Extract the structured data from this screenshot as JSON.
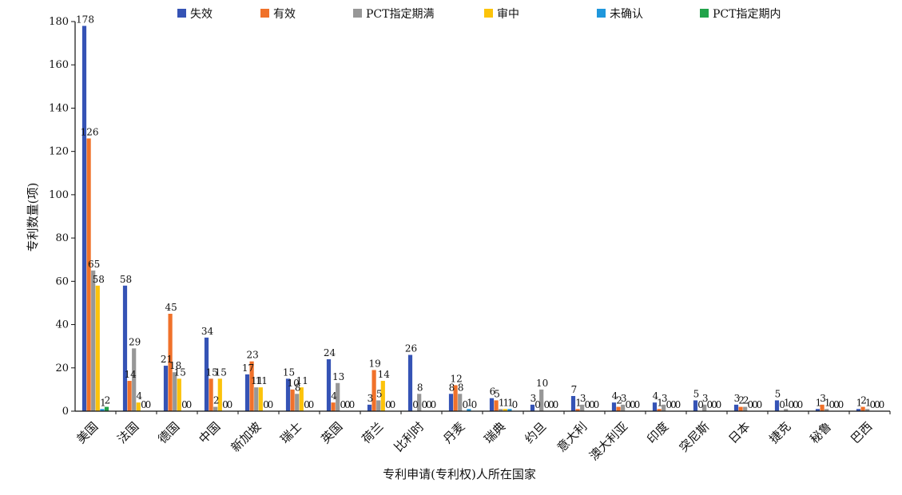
{
  "chart_data": {
    "type": "bar",
    "title": "",
    "xlabel": "专利申请(专利权)人所在国家",
    "ylabel": "专利数量(项)",
    "ylim": [
      0,
      180
    ],
    "yticks": [
      0,
      20,
      40,
      60,
      80,
      100,
      120,
      140,
      160,
      180
    ],
    "legend_position": "top",
    "grid": false,
    "categories": [
      "美国",
      "法国",
      "德国",
      "中国",
      "新加坡",
      "瑞士",
      "英国",
      "荷兰",
      "比利时",
      "丹麦",
      "瑞典",
      "约旦",
      "意大利",
      "澳大利亚",
      "印度",
      "突尼斯",
      "日本",
      "捷克",
      "秘鲁",
      "巴西"
    ],
    "series": [
      {
        "name": "失效",
        "color": "#3553b5",
        "values": [
          178,
          58,
          21,
          34,
          17,
          15,
          24,
          3,
          26,
          8,
          6,
          3,
          7,
          4,
          4,
          5,
          3,
          5,
          1,
          1
        ]
      },
      {
        "name": "有效",
        "color": "#f0712a",
        "values": [
          126,
          14,
          45,
          15,
          23,
          10,
          4,
          19,
          0,
          12,
          5,
          0,
          1,
          2,
          1,
          0,
          2,
          0,
          3,
          2
        ]
      },
      {
        "name": "PCT指定期满",
        "color": "#979797",
        "values": [
          65,
          29,
          18,
          2,
          11,
          8,
          13,
          5,
          8,
          8,
          1,
          10,
          3,
          3,
          3,
          3,
          2,
          1,
          1,
          1
        ]
      },
      {
        "name": "审中",
        "color": "#fcc30a",
        "values": [
          58,
          4,
          15,
          15,
          11,
          11,
          0,
          14,
          0,
          0,
          1,
          0,
          0,
          0,
          0,
          0,
          0,
          0,
          0,
          0
        ]
      },
      {
        "name": "未确认",
        "color": "#1f97dc",
        "values": [
          1,
          0,
          0,
          0,
          0,
          0,
          0,
          0,
          0,
          1,
          1,
          0,
          0,
          0,
          0,
          0,
          0,
          0,
          0,
          0
        ]
      },
      {
        "name": "PCT指定期内",
        "color": "#22a34a",
        "values": [
          2,
          0,
          0,
          0,
          0,
          0,
          0,
          0,
          0,
          0,
          0,
          0,
          0,
          0,
          0,
          0,
          0,
          0,
          0,
          0
        ]
      }
    ],
    "value_labels": [
      [
        "178",
        "126",
        "65",
        "58",
        "1",
        "2"
      ],
      [
        "58",
        "14",
        "29",
        "4",
        "0",
        "0"
      ],
      [
        "21",
        "45",
        "18",
        "15",
        "0",
        "0"
      ],
      [
        "34",
        "15",
        "2",
        "15",
        "0",
        "0"
      ],
      [
        "17",
        "23",
        "11",
        "11",
        "0",
        "0"
      ],
      [
        "15",
        "10",
        "8",
        "11",
        "0",
        "0"
      ],
      [
        "24",
        "4",
        "13",
        "0",
        "0",
        "0"
      ],
      [
        "3",
        "19",
        "5",
        "14",
        "0",
        "0"
      ],
      [
        "26",
        "0",
        "8",
        "0",
        "0",
        "0"
      ],
      [
        "8",
        "12",
        "8",
        "0",
        "1",
        "0"
      ],
      [
        "6",
        "5",
        "1",
        "1",
        "1",
        "0"
      ],
      [
        "3",
        "0",
        "10",
        "0",
        "0",
        "0"
      ],
      [
        "7",
        "1",
        "3",
        "0",
        "0",
        "0"
      ],
      [
        "4",
        "2",
        "3",
        "0",
        "0",
        "0"
      ],
      [
        "4",
        "1",
        "3",
        "0",
        "0",
        "0"
      ],
      [
        "5",
        "0",
        "3",
        "0",
        "0",
        "0"
      ],
      [
        "3",
        "2",
        "2",
        "0",
        "0",
        "0"
      ],
      [
        "5",
        "0",
        "1",
        "0",
        "0",
        "0"
      ],
      [
        "1",
        "3",
        "1",
        "0",
        "0",
        "0"
      ],
      [
        "1",
        "2",
        "1",
        "0",
        "0",
        "0"
      ]
    ]
  }
}
